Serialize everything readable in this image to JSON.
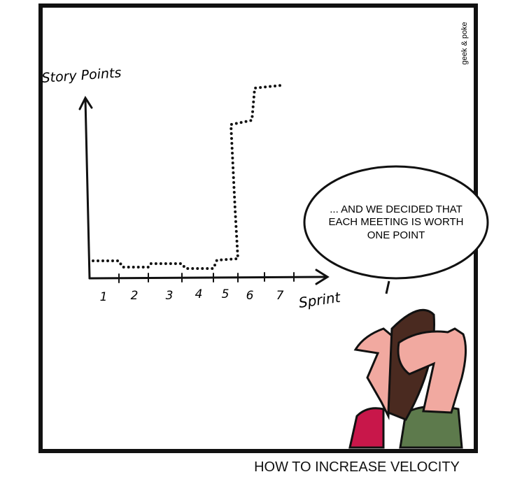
{
  "credit": "geek & poke",
  "chart": {
    "y_axis_label": "Story Points",
    "x_axis_label": "Sprint",
    "x_ticks": [
      "1",
      "2",
      "3",
      "4",
      "5",
      "6",
      "7"
    ]
  },
  "speech_bubble": {
    "lines": [
      "... AND WE DECIDED THAT",
      "EACH MEETING IS WORTH",
      "ONE POINT"
    ]
  },
  "caption": "HOW TO INCREASE VELOCITY"
}
